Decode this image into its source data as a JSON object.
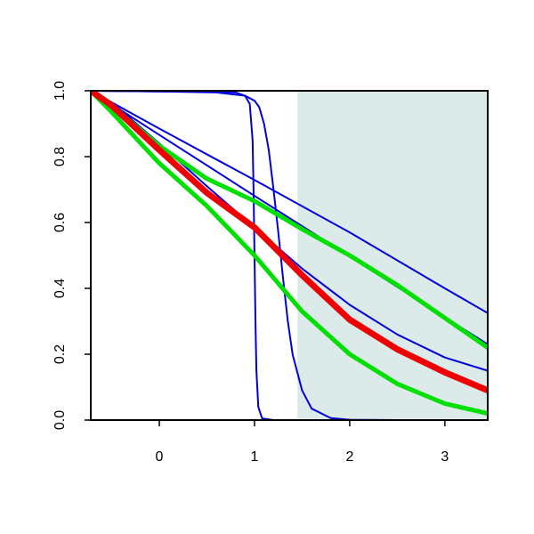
{
  "chart_data": {
    "type": "line",
    "title": "",
    "xlabel": "",
    "ylabel": "",
    "xlim": [
      -0.72,
      3.45
    ],
    "ylim": [
      0,
      1
    ],
    "x_ticks": [
      0,
      1,
      2,
      3
    ],
    "y_ticks": [
      0.0,
      0.2,
      0.4,
      0.6,
      0.8,
      1.0
    ],
    "x_tick_labels": [
      "0",
      "1",
      "2",
      "3"
    ],
    "y_tick_labels": [
      "0.0",
      "0.2",
      "0.4",
      "0.6",
      "0.8",
      "1.0"
    ],
    "grid": false,
    "legend": "none",
    "shaded_region": {
      "x_from": 1.45,
      "x_to": 3.45,
      "color": "#dceaea"
    },
    "series": [
      {
        "color": "#0000dd",
        "width": 2,
        "points": [
          [
            -0.72,
            1.0
          ],
          [
            0.0,
            0.866
          ],
          [
            1.0,
            0.681
          ],
          [
            2.0,
            0.497
          ],
          [
            3.0,
            0.312
          ],
          [
            3.45,
            0.23
          ]
        ]
      },
      {
        "color": "#0000dd",
        "width": 2,
        "points": [
          [
            -0.72,
            1.0
          ],
          [
            0.0,
            0.885
          ],
          [
            1.0,
            0.729
          ],
          [
            2.0,
            0.57
          ],
          [
            3.0,
            0.4
          ],
          [
            3.45,
            0.325
          ]
        ]
      },
      {
        "color": "#0000dd",
        "width": 2,
        "points": [
          [
            -0.72,
            1.0
          ],
          [
            -0.5,
            0.965
          ],
          [
            0.0,
            0.84
          ],
          [
            0.5,
            0.71
          ],
          [
            1.0,
            0.585
          ],
          [
            1.5,
            0.46
          ],
          [
            2.0,
            0.35
          ],
          [
            2.5,
            0.26
          ],
          [
            3.0,
            0.19
          ],
          [
            3.45,
            0.15
          ]
        ]
      },
      {
        "color": "#0000dd",
        "width": 2,
        "points": [
          [
            -0.72,
            1.0
          ],
          [
            0.0,
            0.998
          ],
          [
            0.6,
            0.997
          ],
          [
            0.8,
            0.995
          ],
          [
            0.9,
            0.985
          ],
          [
            0.95,
            0.96
          ],
          [
            0.98,
            0.85
          ],
          [
            0.99,
            0.7
          ],
          [
            1.0,
            0.5
          ],
          [
            1.01,
            0.3
          ],
          [
            1.02,
            0.15
          ],
          [
            1.04,
            0.04
          ],
          [
            1.08,
            0.005
          ],
          [
            1.2,
            0.0
          ],
          [
            3.45,
            0.0
          ]
        ]
      },
      {
        "color": "#0000dd",
        "width": 2,
        "points": [
          [
            -0.72,
            1.0
          ],
          [
            0.0,
            0.998
          ],
          [
            0.6,
            0.995
          ],
          [
            0.9,
            0.985
          ],
          [
            1.0,
            0.97
          ],
          [
            1.05,
            0.95
          ],
          [
            1.1,
            0.9
          ],
          [
            1.15,
            0.82
          ],
          [
            1.2,
            0.7
          ],
          [
            1.25,
            0.57
          ],
          [
            1.3,
            0.43
          ],
          [
            1.35,
            0.3
          ],
          [
            1.4,
            0.2
          ],
          [
            1.5,
            0.09
          ],
          [
            1.6,
            0.035
          ],
          [
            1.8,
            0.006
          ],
          [
            2.0,
            0.001
          ],
          [
            2.5,
            0.0
          ],
          [
            3.45,
            0.0
          ]
        ]
      },
      {
        "color": "#00e000",
        "width": 5,
        "points": [
          [
            -0.72,
            1.0
          ],
          [
            -0.5,
            0.955
          ],
          [
            0.0,
            0.833
          ],
          [
            0.5,
            0.733
          ],
          [
            1.0,
            0.665
          ],
          [
            1.5,
            0.58
          ],
          [
            2.0,
            0.5
          ],
          [
            2.5,
            0.41
          ],
          [
            3.0,
            0.31
          ],
          [
            3.45,
            0.22
          ]
        ]
      },
      {
        "color": "#00e000",
        "width": 5,
        "points": [
          [
            -0.72,
            1.0
          ],
          [
            -0.5,
            0.935
          ],
          [
            0.0,
            0.78
          ],
          [
            0.5,
            0.65
          ],
          [
            1.0,
            0.5
          ],
          [
            1.5,
            0.33
          ],
          [
            2.0,
            0.2
          ],
          [
            2.5,
            0.11
          ],
          [
            3.0,
            0.05
          ],
          [
            3.45,
            0.02
          ]
        ]
      },
      {
        "color": "#ee0000",
        "width": 7,
        "points": [
          [
            -0.72,
            1.0
          ],
          [
            -0.5,
            0.955
          ],
          [
            0.0,
            0.82
          ],
          [
            0.5,
            0.69
          ],
          [
            1.0,
            0.585
          ],
          [
            1.5,
            0.44
          ],
          [
            2.0,
            0.305
          ],
          [
            2.5,
            0.215
          ],
          [
            3.0,
            0.145
          ],
          [
            3.45,
            0.09
          ]
        ]
      }
    ]
  }
}
